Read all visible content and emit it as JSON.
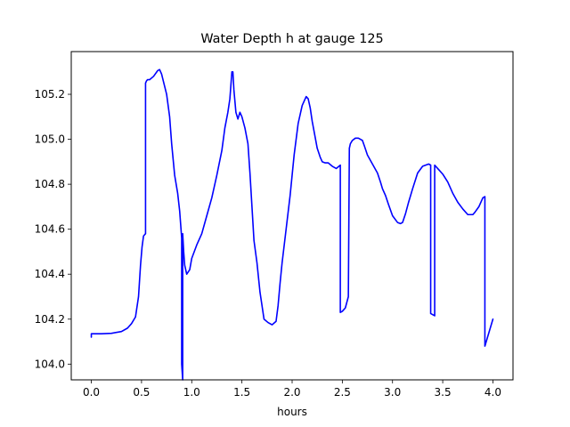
{
  "chart_data": {
    "type": "line",
    "title": "Water Depth h at gauge 125",
    "xlabel": "hours",
    "ylabel": "",
    "xlim": [
      -0.2,
      4.2
    ],
    "ylim": [
      103.93,
      105.39
    ],
    "xticks": [
      0.0,
      0.5,
      1.0,
      1.5,
      2.0,
      2.5,
      3.0,
      3.5,
      4.0
    ],
    "xtick_labels": [
      "0.0",
      "0.5",
      "1.0",
      "1.5",
      "2.0",
      "2.5",
      "3.0",
      "3.5",
      "4.0"
    ],
    "yticks": [
      104.0,
      104.2,
      104.4,
      104.6,
      104.8,
      105.0,
      105.2
    ],
    "ytick_labels": [
      "104.0",
      "104.2",
      "104.4",
      "104.6",
      "104.8",
      "105.0",
      "105.2"
    ],
    "grid": false,
    "legend": "none",
    "series": [
      {
        "color": "#0000ff",
        "x": [
          0.0,
          0.0,
          0.05,
          0.1,
          0.2,
          0.3,
          0.36,
          0.4,
          0.44,
          0.47,
          0.49,
          0.505,
          0.52,
          0.54,
          0.54,
          0.55,
          0.56,
          0.58,
          0.62,
          0.66,
          0.68,
          0.7,
          0.75,
          0.78,
          0.8,
          0.83,
          0.86,
          0.88,
          0.9,
          0.9,
          0.91,
          0.91,
          0.92,
          0.93,
          0.95,
          0.98,
          1.0,
          1.05,
          1.1,
          1.15,
          1.2,
          1.25,
          1.3,
          1.33,
          1.36,
          1.38,
          1.4,
          1.41,
          1.42,
          1.44,
          1.46,
          1.48,
          1.5,
          1.53,
          1.56,
          1.58,
          1.6,
          1.62,
          1.65,
          1.68,
          1.72,
          1.76,
          1.8,
          1.84,
          1.86,
          1.88,
          1.9,
          1.94,
          1.98,
          2.02,
          2.06,
          2.1,
          2.14,
          2.16,
          2.18,
          2.2,
          2.25,
          2.28,
          2.3,
          2.33,
          2.36,
          2.4,
          2.44,
          2.48,
          2.48,
          2.5,
          2.53,
          2.56,
          2.57,
          2.58,
          2.6,
          2.63,
          2.66,
          2.7,
          2.72,
          2.75,
          2.8,
          2.85,
          2.88,
          2.9,
          2.93,
          2.96,
          3.0,
          3.05,
          3.08,
          3.1,
          3.13,
          3.16,
          3.2,
          3.25,
          3.3,
          3.33,
          3.36,
          3.38,
          3.38,
          3.42,
          3.42,
          3.44,
          3.47,
          3.5,
          3.55,
          3.6,
          3.65,
          3.7,
          3.75,
          3.8,
          3.82,
          3.86,
          3.9,
          3.92,
          3.92,
          4.0
        ],
        "y": [
          104.12,
          104.135,
          104.135,
          104.135,
          104.137,
          104.145,
          104.16,
          104.18,
          104.21,
          104.3,
          104.44,
          104.52,
          104.57,
          104.58,
          105.25,
          105.26,
          105.265,
          105.265,
          105.28,
          105.305,
          105.31,
          105.29,
          105.2,
          105.1,
          104.98,
          104.84,
          104.76,
          104.68,
          104.56,
          104.0,
          103.93,
          104.58,
          104.5,
          104.44,
          104.4,
          104.42,
          104.47,
          104.53,
          104.58,
          104.66,
          104.74,
          104.84,
          104.95,
          105.05,
          105.12,
          105.18,
          105.3,
          105.3,
          105.22,
          105.12,
          105.09,
          105.12,
          105.1,
          105.05,
          104.98,
          104.85,
          104.7,
          104.55,
          104.45,
          104.32,
          104.2,
          104.185,
          104.175,
          104.19,
          104.26,
          104.36,
          104.45,
          104.6,
          104.75,
          104.93,
          105.07,
          105.15,
          105.19,
          105.18,
          105.14,
          105.08,
          104.96,
          104.92,
          104.9,
          104.895,
          104.895,
          104.88,
          104.87,
          104.885,
          104.23,
          104.235,
          104.25,
          104.3,
          104.96,
          104.98,
          104.995,
          105.005,
          105.005,
          104.995,
          104.97,
          104.93,
          104.89,
          104.85,
          104.81,
          104.78,
          104.75,
          104.71,
          104.66,
          104.63,
          104.625,
          104.63,
          104.67,
          104.72,
          104.78,
          104.85,
          104.88,
          104.885,
          104.89,
          104.885,
          104.225,
          104.215,
          104.885,
          104.875,
          104.86,
          104.845,
          104.81,
          104.76,
          104.72,
          104.69,
          104.665,
          104.665,
          104.675,
          104.7,
          104.74,
          104.745,
          104.08,
          104.2
        ]
      }
    ]
  }
}
